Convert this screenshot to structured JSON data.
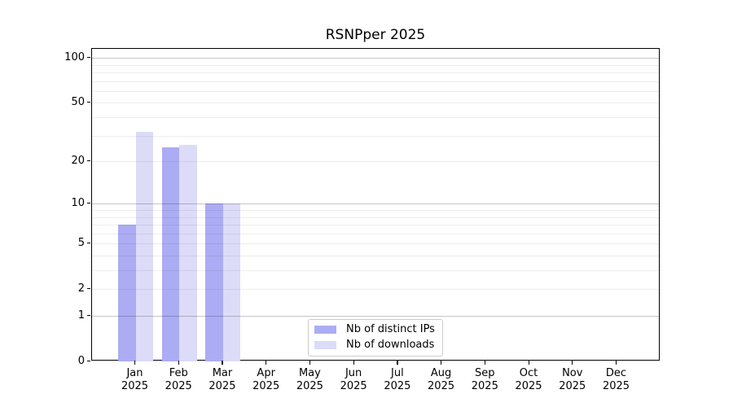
{
  "title": "RSNPper 2025",
  "background_color": "#ffffff",
  "chart_data": {
    "type": "bar",
    "title": "RSNPper 2025",
    "categories": [
      "Jan",
      "Feb",
      "Mar",
      "Apr",
      "May",
      "Jun",
      "Jul",
      "Aug",
      "Sep",
      "Oct",
      "Nov",
      "Dec"
    ],
    "category_year": "2025",
    "series": [
      {
        "name": "Nb of distinct IPs",
        "color": "#acacf4",
        "values": [
          7,
          25,
          10,
          0,
          0,
          0,
          0,
          0,
          0,
          0,
          0,
          0
        ]
      },
      {
        "name": "Nb of downloads",
        "color": "#dcdcf8",
        "values": [
          32,
          26,
          10,
          0,
          0,
          0,
          0,
          0,
          0,
          0,
          0,
          0
        ]
      }
    ],
    "xlabel": "",
    "ylabel": "",
    "yscale": "log1p",
    "ylim": [
      0,
      115
    ],
    "y_ticks": [
      0,
      1,
      2,
      5,
      10,
      20,
      50,
      100
    ],
    "y_major_gridlines": [
      1,
      10,
      100
    ],
    "y_minor_gridlines": [
      2,
      3,
      4,
      5,
      6,
      7,
      8,
      9,
      20,
      30,
      40,
      50,
      60,
      70,
      80,
      90
    ],
    "grid": true,
    "legend_position": "lower center",
    "grid_major_color": "#c8c8c8",
    "grid_minor_color": "#ededed"
  }
}
